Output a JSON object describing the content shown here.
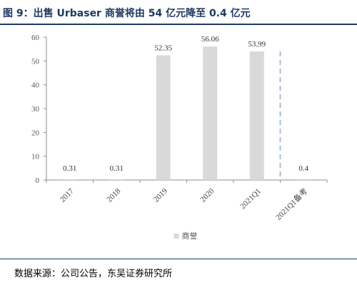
{
  "title": "图 9：出售 Urbaser 商誉将由 54 亿元降至 0.4 亿元",
  "source": "数据来源：公司公告，东吴证券研究所",
  "chart_data": {
    "type": "bar",
    "categories": [
      "2017",
      "2018",
      "2019",
      "2020",
      "2021Q1",
      "2021Q1备考"
    ],
    "series": [
      {
        "name": "商誉",
        "values": [
          0.31,
          0.31,
          52.35,
          56.06,
          53.99,
          0.4
        ],
        "color": "#d9d9d9"
      }
    ],
    "data_labels": [
      "0.31",
      "0.31",
      "52.35",
      "56.06",
      "53.99",
      "0.4"
    ],
    "ylim": [
      0,
      60
    ],
    "yticks": [
      0,
      10,
      20,
      30,
      40,
      50,
      60
    ],
    "divider_between": [
      "2021Q1",
      "2021Q1备考"
    ],
    "divider_color": "#a9bed3",
    "legend_position": "bottom",
    "grid": false
  }
}
